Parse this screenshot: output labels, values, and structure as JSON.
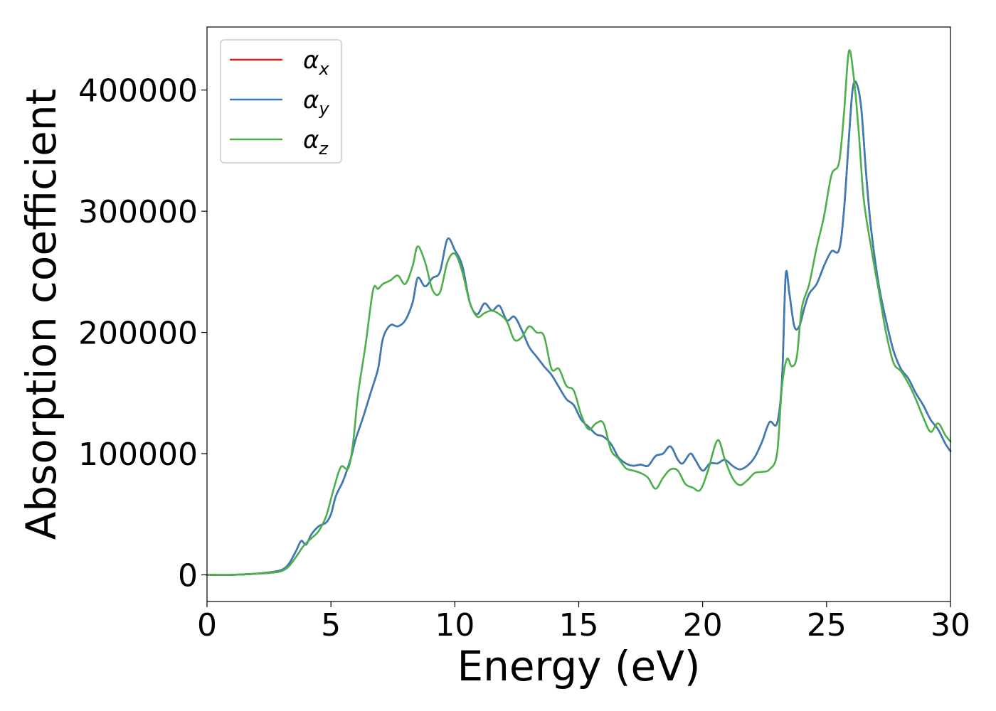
{
  "chart_data": {
    "type": "line",
    "title": "",
    "xlabel": "Energy (eV)",
    "ylabel": "Absorption coefficient",
    "xlim": [
      0,
      30
    ],
    "ylim": [
      -22000,
      452000
    ],
    "xticks": [
      0,
      5,
      10,
      15,
      20,
      25,
      30
    ],
    "yticks": [
      0,
      100000,
      200000,
      300000,
      400000
    ],
    "grid": false,
    "legend": {
      "position": "top-left"
    },
    "series": [
      {
        "name": "α_x",
        "name_base": "α",
        "name_sub": "x",
        "color": "#e41a1c",
        "x": [
          0,
          1,
          2,
          2.5,
          3,
          3.3,
          3.6,
          3.8,
          4.0,
          4.2,
          4.5,
          4.8,
          5.0,
          5.2,
          5.5,
          5.8,
          6.0,
          6.3,
          6.6,
          6.9,
          7.1,
          7.4,
          7.7,
          8.0,
          8.3,
          8.5,
          8.8,
          9.1,
          9.4,
          9.7,
          10.0,
          10.3,
          10.6,
          10.9,
          11.2,
          11.5,
          11.8,
          12.1,
          12.4,
          12.7,
          13.0,
          13.3,
          13.6,
          13.9,
          14.2,
          14.5,
          14.8,
          15.1,
          15.4,
          15.7,
          16.0,
          16.3,
          16.6,
          16.9,
          17.2,
          17.5,
          17.8,
          18.1,
          18.4,
          18.7,
          19.0,
          19.2,
          19.5,
          19.7,
          20.0,
          20.3,
          20.6,
          20.9,
          21.2,
          21.5,
          21.8,
          22.1,
          22.4,
          22.7,
          23.0,
          23.2,
          23.35,
          23.5,
          23.7,
          23.9,
          24.1,
          24.3,
          24.6,
          24.9,
          25.2,
          25.5,
          25.7,
          25.9,
          26.05,
          26.2,
          26.4,
          26.6,
          26.8,
          27.1,
          27.4,
          27.7,
          28.0,
          28.3,
          28.6,
          28.9,
          29.2,
          29.5,
          29.8,
          30.0
        ],
        "y": [
          0,
          0,
          1000,
          2000,
          4000,
          9000,
          20000,
          28000,
          25000,
          33000,
          40000,
          43000,
          50000,
          65000,
          78000,
          96000,
          112000,
          130000,
          150000,
          170000,
          195000,
          206000,
          205000,
          210000,
          225000,
          245000,
          238000,
          245000,
          250000,
          277000,
          268000,
          255000,
          225000,
          215000,
          224000,
          218000,
          222000,
          210000,
          213000,
          202000,
          188000,
          180000,
          172000,
          165000,
          155000,
          145000,
          140000,
          128000,
          122000,
          116000,
          114000,
          108000,
          97000,
          92000,
          90000,
          91000,
          90000,
          98000,
          100000,
          106000,
          95000,
          92000,
          100000,
          95000,
          86000,
          92000,
          92000,
          95000,
          90000,
          87000,
          90000,
          97000,
          110000,
          126000,
          125000,
          160000,
          247000,
          232000,
          205000,
          205000,
          220000,
          232000,
          240000,
          255000,
          267000,
          268000,
          300000,
          360000,
          400000,
          406000,
          385000,
          330000,
          285000,
          240000,
          210000,
          185000,
          170000,
          162000,
          150000,
          140000,
          128000,
          120000,
          108000,
          102000
        ]
      },
      {
        "name": "α_y",
        "name_base": "α",
        "name_sub": "y",
        "color": "#377eb8",
        "x": [
          0,
          1,
          2,
          2.5,
          3,
          3.3,
          3.6,
          3.8,
          4.0,
          4.2,
          4.5,
          4.8,
          5.0,
          5.2,
          5.5,
          5.8,
          6.0,
          6.3,
          6.6,
          6.9,
          7.1,
          7.4,
          7.7,
          8.0,
          8.3,
          8.5,
          8.8,
          9.1,
          9.4,
          9.7,
          10.0,
          10.3,
          10.6,
          10.9,
          11.2,
          11.5,
          11.8,
          12.1,
          12.4,
          12.7,
          13.0,
          13.3,
          13.6,
          13.9,
          14.2,
          14.5,
          14.8,
          15.1,
          15.4,
          15.7,
          16.0,
          16.3,
          16.6,
          16.9,
          17.2,
          17.5,
          17.8,
          18.1,
          18.4,
          18.7,
          19.0,
          19.2,
          19.5,
          19.7,
          20.0,
          20.3,
          20.6,
          20.9,
          21.2,
          21.5,
          21.8,
          22.1,
          22.4,
          22.7,
          23.0,
          23.2,
          23.35,
          23.5,
          23.7,
          23.9,
          24.1,
          24.3,
          24.6,
          24.9,
          25.2,
          25.5,
          25.7,
          25.9,
          26.05,
          26.2,
          26.4,
          26.6,
          26.8,
          27.1,
          27.4,
          27.7,
          28.0,
          28.3,
          28.6,
          28.9,
          29.2,
          29.5,
          29.8,
          30.0
        ],
        "y": [
          0,
          0,
          1000,
          2000,
          4000,
          9000,
          20000,
          28000,
          25000,
          33000,
          40000,
          43000,
          50000,
          65000,
          78000,
          96000,
          112000,
          130000,
          150000,
          170000,
          195000,
          206000,
          205000,
          210000,
          225000,
          245000,
          238000,
          245000,
          250000,
          277000,
          268000,
          255000,
          225000,
          215000,
          224000,
          218000,
          222000,
          210000,
          213000,
          202000,
          188000,
          180000,
          172000,
          165000,
          155000,
          145000,
          140000,
          128000,
          122000,
          116000,
          114000,
          108000,
          97000,
          92000,
          90000,
          91000,
          90000,
          98000,
          100000,
          106000,
          95000,
          92000,
          100000,
          95000,
          86000,
          92000,
          92000,
          95000,
          90000,
          87000,
          90000,
          97000,
          110000,
          126000,
          125000,
          160000,
          247000,
          232000,
          205000,
          205000,
          220000,
          232000,
          240000,
          255000,
          267000,
          268000,
          300000,
          360000,
          400000,
          406000,
          385000,
          330000,
          285000,
          240000,
          210000,
          185000,
          170000,
          162000,
          150000,
          140000,
          128000,
          120000,
          108000,
          102000
        ]
      },
      {
        "name": "α_z",
        "name_base": "α",
        "name_sub": "z",
        "color": "#4daf4a",
        "x": [
          0,
          1,
          2,
          2.5,
          3,
          3.3,
          3.6,
          3.9,
          4.2,
          4.5,
          4.8,
          5.1,
          5.4,
          5.7,
          5.9,
          6.1,
          6.4,
          6.7,
          6.9,
          7.1,
          7.4,
          7.7,
          8.0,
          8.3,
          8.5,
          8.8,
          9.1,
          9.4,
          9.7,
          10.0,
          10.3,
          10.6,
          10.9,
          11.2,
          11.5,
          11.8,
          12.1,
          12.4,
          12.7,
          13.0,
          13.3,
          13.6,
          13.9,
          14.2,
          14.5,
          14.8,
          15.1,
          15.4,
          15.7,
          16.0,
          16.3,
          16.6,
          16.9,
          17.2,
          17.5,
          17.8,
          18.1,
          18.4,
          18.7,
          19.0,
          19.3,
          19.6,
          19.9,
          20.2,
          20.6,
          20.9,
          21.2,
          21.5,
          21.8,
          22.1,
          22.4,
          22.7,
          23.0,
          23.2,
          23.4,
          23.6,
          23.8,
          24.0,
          24.3,
          24.6,
          24.9,
          25.2,
          25.5,
          25.7,
          25.9,
          26.1,
          26.3,
          26.5,
          26.8,
          27.1,
          27.4,
          27.7,
          28.0,
          28.3,
          28.6,
          28.9,
          29.2,
          29.5,
          29.8,
          30.0
        ],
        "y": [
          0,
          0,
          1000,
          1500,
          3000,
          7000,
          15000,
          24000,
          30000,
          36000,
          48000,
          70000,
          89000,
          88000,
          110000,
          150000,
          190000,
          235000,
          236000,
          240000,
          243000,
          247000,
          240000,
          255000,
          271000,
          258000,
          235000,
          233000,
          258000,
          265000,
          250000,
          225000,
          213000,
          216000,
          218000,
          215000,
          209000,
          194000,
          196000,
          205000,
          200000,
          197000,
          170000,
          170000,
          156000,
          152000,
          132000,
          120000,
          125000,
          125000,
          103000,
          96000,
          88000,
          86000,
          84000,
          80000,
          71000,
          80000,
          87000,
          86000,
          75000,
          72000,
          70000,
          85000,
          111000,
          95000,
          80000,
          74000,
          78000,
          84000,
          85000,
          87000,
          100000,
          155000,
          178000,
          172000,
          180000,
          220000,
          240000,
          270000,
          296000,
          330000,
          340000,
          380000,
          432000,
          410000,
          365000,
          310000,
          270000,
          235000,
          200000,
          175000,
          168000,
          158000,
          145000,
          130000,
          118000,
          125000,
          115000,
          110000
        ]
      }
    ]
  }
}
